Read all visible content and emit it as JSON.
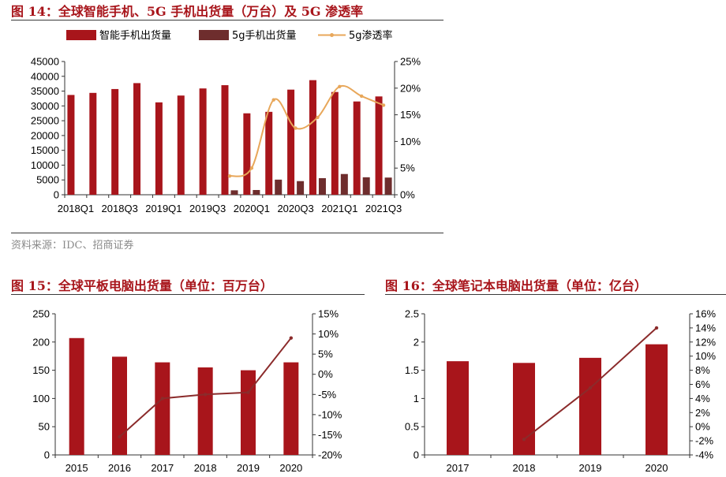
{
  "colors": {
    "title": "#a8151b",
    "bar_main": "#a8151b",
    "bar_5g": "#6e2d2d",
    "line_5g": "#e8a75a",
    "line_dark": "#8b2b2b",
    "source_text": "#8a8a8a"
  },
  "figure1": {
    "title": "图 14：全球智能手机、5G 手机出货量（万台）及 5G 渗透率",
    "source": "资料来源：IDC、招商证券"
  },
  "figure2": {
    "title": "图 15：全球平板电脑出货量（单位：百万台）"
  },
  "figure3": {
    "title": "图 16：全球笔记本电脑出货量（单位：亿台）"
  },
  "chart_data": [
    {
      "type": "bar",
      "combo_line_series": "5g渗透率",
      "categories": [
        "2018Q1",
        "2018Q2",
        "2018Q3",
        "2018Q4",
        "2019Q1",
        "2019Q2",
        "2019Q3",
        "2019Q4",
        "2020Q1",
        "2020Q2",
        "2020Q3",
        "2020Q4",
        "2021Q1",
        "2021Q2",
        "2021Q3"
      ],
      "tick_labels": [
        "2018Q1",
        "2018Q3",
        "2019Q1",
        "2019Q3",
        "2020Q1",
        "2020Q3",
        "2021Q1",
        "2021Q3"
      ],
      "series": [
        {
          "name": "智能手机出货量",
          "axis": "left",
          "kind": "bar",
          "values": [
            33700,
            34400,
            35700,
            37700,
            31200,
            33500,
            35900,
            37000,
            27500,
            28000,
            35500,
            38700,
            34700,
            31500,
            33200
          ]
        },
        {
          "name": "5g手机出货量",
          "axis": "left",
          "kind": "bar",
          "values": [
            null,
            null,
            null,
            null,
            null,
            null,
            null,
            1500,
            1600,
            5100,
            4600,
            5600,
            7000,
            5900,
            5800
          ]
        },
        {
          "name": "5g渗透率",
          "axis": "right",
          "kind": "line",
          "values": [
            null,
            null,
            null,
            null,
            null,
            null,
            null,
            3.5,
            5.0,
            17.8,
            12.5,
            14.5,
            20.3,
            18.5,
            16.8
          ]
        }
      ],
      "ylim_left": [
        0,
        45000
      ],
      "yticks_left": [
        "0",
        "5000",
        "10000",
        "15000",
        "20000",
        "25000",
        "30000",
        "35000",
        "40000",
        "45000"
      ],
      "ylim_right": [
        0,
        25
      ],
      "yticks_right": [
        "0%",
        "5%",
        "10%",
        "15%",
        "20%",
        "25%"
      ],
      "legend_position": "top"
    },
    {
      "type": "bar",
      "combo_line_series": "growth",
      "categories": [
        "2015",
        "2016",
        "2017",
        "2018",
        "2019",
        "2020"
      ],
      "series": [
        {
          "axis": "left",
          "kind": "bar",
          "values": [
            207,
            174,
            164,
            155,
            150,
            164
          ]
        },
        {
          "axis": "right",
          "kind": "line",
          "values": [
            null,
            -15.5,
            -6.0,
            -5.0,
            -4.5,
            9.0
          ]
        }
      ],
      "ylim_left": [
        0,
        250
      ],
      "yticks_left": [
        "0",
        "50",
        "100",
        "150",
        "200",
        "250"
      ],
      "ylim_right": [
        -20,
        15
      ],
      "yticks_right": [
        "-20%",
        "-15%",
        "-10%",
        "-5%",
        "0%",
        "5%",
        "10%",
        "15%"
      ]
    },
    {
      "type": "bar",
      "combo_line_series": "growth",
      "categories": [
        "2017",
        "2018",
        "2019",
        "2020"
      ],
      "series": [
        {
          "axis": "left",
          "kind": "bar",
          "values": [
            1.66,
            1.63,
            1.72,
            1.96
          ]
        },
        {
          "axis": "right",
          "kind": "line",
          "values": [
            null,
            -1.8,
            5.5,
            14.0
          ]
        }
      ],
      "ylim_left": [
        0,
        2.5
      ],
      "yticks_left": [
        "0",
        "0.5",
        "1",
        "1.5",
        "2",
        "2.5"
      ],
      "ylim_right": [
        -4,
        16
      ],
      "yticks_right": [
        "-4%",
        "-2%",
        "0%",
        "2%",
        "4%",
        "6%",
        "8%",
        "10%",
        "12%",
        "14%",
        "16%"
      ]
    }
  ]
}
